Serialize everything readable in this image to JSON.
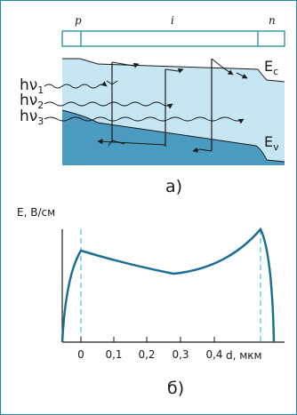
{
  "colors": {
    "accent": "#1e8aa6",
    "band_fill": "#c6e6f4",
    "valence_fill": "#4a9bbf",
    "ink": "#1a1a1a",
    "curve": "#1b6f92",
    "dashed": "#4fc2dc"
  },
  "part_a": {
    "regions": {
      "p": "p",
      "i": "i",
      "n": "n"
    },
    "photons": [
      {
        "h": "hν",
        "sub": "1"
      },
      {
        "h": "hν",
        "sub": "2"
      },
      {
        "h": "hν",
        "sub": "3"
      }
    ],
    "ec": {
      "main": "E",
      "sub": "c"
    },
    "ev": {
      "main": "E",
      "sub": "v"
    },
    "caption": "а)"
  },
  "part_b": {
    "y_axis_label": "E, В/см",
    "x_axis_label": "d, мкм",
    "x_ticks": [
      "0",
      "0,1",
      "0,2",
      "0,3",
      "0,4"
    ],
    "caption": "б)"
  }
}
